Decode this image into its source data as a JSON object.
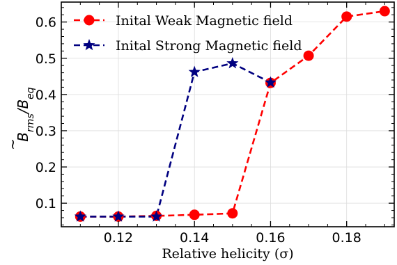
{
  "chart_data": {
    "type": "line",
    "title": "",
    "xlabel": "Relative helicity (σ)",
    "ylabel": {
      "main": "B",
      "tilde": "~",
      "sub1": "rms",
      "slash": "/B",
      "sub2": "eq"
    },
    "xlim": [
      0.105,
      0.1925
    ],
    "ylim": [
      0.035,
      0.655
    ],
    "xticks": [
      0.12,
      0.14,
      0.16,
      0.18
    ],
    "xtick_labels": [
      "0.12",
      "0.14",
      "0.16",
      "0.18"
    ],
    "yticks": [
      0.1,
      0.2,
      0.3,
      0.4,
      0.5,
      0.6
    ],
    "ytick_labels": [
      "0.1",
      "0.2",
      "0.3",
      "0.4",
      "0.5",
      "0.6"
    ],
    "grid": true,
    "legend_position": "top-left",
    "series": [
      {
        "name": "Inital Weak Magnetic field",
        "color": "#ff0000",
        "marker": "circle",
        "linestyle": "dashed",
        "x": [
          0.11,
          0.12,
          0.13,
          0.14,
          0.15,
          0.16,
          0.17,
          0.18,
          0.19
        ],
        "y": [
          0.063,
          0.063,
          0.065,
          0.068,
          0.072,
          0.432,
          0.507,
          0.615,
          0.63
        ]
      },
      {
        "name": "Inital Strong Magnetic field",
        "color": "#000080",
        "marker": "star",
        "linestyle": "dashed",
        "x": [
          0.11,
          0.12,
          0.13,
          0.14,
          0.15,
          0.16
        ],
        "y": [
          0.063,
          0.063,
          0.063,
          0.462,
          0.486,
          0.433
        ]
      }
    ]
  }
}
